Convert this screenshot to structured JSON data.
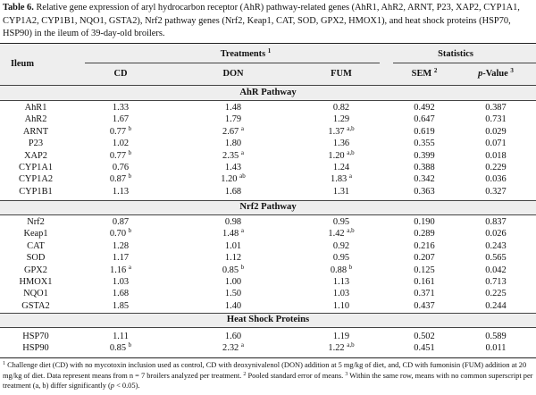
{
  "caption": {
    "label": "Table 6.",
    "text": "Relative gene expression of aryl hydrocarbon receptor (AhR) pathway-related genes (AhR1, AhR2, ARNT, P23, XAP2, CYP1A1, CYP1A2, CYP1B1, NQO1, GSTA2), Nrf2 pathway genes (Nrf2, Keap1, CAT, SOD, GPX2, HMOX1), and heat shock proteins (HSP70, HSP90) in the ileum of 39-day-old broilers."
  },
  "header": {
    "row_label": "Ileum",
    "treatments": "Treatments",
    "treatments_sup": "1",
    "statistics": "Statistics",
    "cols": {
      "cd": "CD",
      "don": "DON",
      "fum": "FUM",
      "sem": "SEM",
      "sem_sup": "2",
      "p_italic": "p",
      "p_rest": "-Value",
      "p_sup": "3"
    }
  },
  "sections": [
    {
      "title": "AhR Pathway",
      "rows": [
        {
          "gene": "AhR1",
          "cd": "1.33",
          "cd_sup": "",
          "don": "1.48",
          "don_sup": "",
          "fum": "0.82",
          "fum_sup": "",
          "sem": "0.492",
          "p": "0.387"
        },
        {
          "gene": "AhR2",
          "cd": "1.67",
          "cd_sup": "",
          "don": "1.79",
          "don_sup": "",
          "fum": "1.29",
          "fum_sup": "",
          "sem": "0.647",
          "p": "0.731"
        },
        {
          "gene": "ARNT",
          "cd": "0.77",
          "cd_sup": "b",
          "don": "2.67",
          "don_sup": "a",
          "fum": "1.37",
          "fum_sup": "a,b",
          "sem": "0.619",
          "p": "0.029"
        },
        {
          "gene": "P23",
          "cd": "1.02",
          "cd_sup": "",
          "don": "1.80",
          "don_sup": "",
          "fum": "1.36",
          "fum_sup": "",
          "sem": "0.355",
          "p": "0.071"
        },
        {
          "gene": "XAP2",
          "cd": "0.77",
          "cd_sup": "b",
          "don": "2.35",
          "don_sup": "a",
          "fum": "1.20",
          "fum_sup": "a,b",
          "sem": "0.399",
          "p": "0.018"
        },
        {
          "gene": "CYP1A1",
          "cd": "0.76",
          "cd_sup": "",
          "don": "1.43",
          "don_sup": "",
          "fum": "1.24",
          "fum_sup": "",
          "sem": "0.388",
          "p": "0.229"
        },
        {
          "gene": "CYP1A2",
          "cd": "0.87",
          "cd_sup": "b",
          "don": "1.20",
          "don_sup": "ab",
          "fum": "1.83",
          "fum_sup": "a",
          "sem": "0.342",
          "p": "0.036"
        },
        {
          "gene": "CYP1B1",
          "cd": "1.13",
          "cd_sup": "",
          "don": "1.68",
          "don_sup": "",
          "fum": "1.31",
          "fum_sup": "",
          "sem": "0.363",
          "p": "0.327"
        }
      ]
    },
    {
      "title": "Nrf2 Pathway",
      "rows": [
        {
          "gene": "Nrf2",
          "cd": "0.87",
          "cd_sup": "",
          "don": "0.98",
          "don_sup": "",
          "fum": "0.95",
          "fum_sup": "",
          "sem": "0.190",
          "p": "0.837"
        },
        {
          "gene": "Keap1",
          "cd": "0.70",
          "cd_sup": "b",
          "don": "1.48",
          "don_sup": "a",
          "fum": "1.42",
          "fum_sup": "a,b",
          "sem": "0.289",
          "p": "0.026"
        },
        {
          "gene": "CAT",
          "cd": "1.28",
          "cd_sup": "",
          "don": "1.01",
          "don_sup": "",
          "fum": "0.92",
          "fum_sup": "",
          "sem": "0.216",
          "p": "0.243"
        },
        {
          "gene": "SOD",
          "cd": "1.17",
          "cd_sup": "",
          "don": "1.12",
          "don_sup": "",
          "fum": "0.95",
          "fum_sup": "",
          "sem": "0.207",
          "p": "0.565"
        },
        {
          "gene": "GPX2",
          "cd": "1.16",
          "cd_sup": "a",
          "don": "0.85",
          "don_sup": "b",
          "fum": "0.88",
          "fum_sup": "b",
          "sem": "0.125",
          "p": "0.042"
        },
        {
          "gene": "HMOX1",
          "cd": "1.03",
          "cd_sup": "",
          "don": "1.00",
          "don_sup": "",
          "fum": "1.13",
          "fum_sup": "",
          "sem": "0.161",
          "p": "0.713"
        },
        {
          "gene": "NQO1",
          "cd": "1.68",
          "cd_sup": "",
          "don": "1.50",
          "don_sup": "",
          "fum": "1.03",
          "fum_sup": "",
          "sem": "0.371",
          "p": "0.225"
        },
        {
          "gene": "GSTA2",
          "cd": "1.85",
          "cd_sup": "",
          "don": "1.40",
          "don_sup": "",
          "fum": "1.10",
          "fum_sup": "",
          "sem": "0.437",
          "p": "0.244"
        }
      ]
    },
    {
      "title": "Heat Shock Proteins",
      "rows": [
        {
          "gene": "HSP70",
          "cd": "1.11",
          "cd_sup": "",
          "don": "1.60",
          "don_sup": "",
          "fum": "1.19",
          "fum_sup": "",
          "sem": "0.502",
          "p": "0.589"
        },
        {
          "gene": "HSP90",
          "cd": "0.85",
          "cd_sup": "b",
          "don": "2.32",
          "don_sup": "a",
          "fum": "1.22",
          "fum_sup": "a,b",
          "sem": "0.451",
          "p": "0.011"
        }
      ]
    }
  ],
  "footnote": {
    "sup1": "1",
    "text1": "Challenge diet (CD) with no mycotoxin inclusion used as control, CD with deoxynivalenol (DON) addition at 5 mg/kg of diet, and, CD with fumonisin (FUM) addition at 20 mg/kg of diet. Data represent means from n = 7 broilers analyzed per treatment.",
    "sup2": "2",
    "text2": "Pooled standard error of means.",
    "sup3": "3",
    "text3": "Within the same row, means with no common superscript per treatment (a, b) differ significantly (",
    "p_italic": "p",
    "text3_end": "< 0.05)."
  }
}
